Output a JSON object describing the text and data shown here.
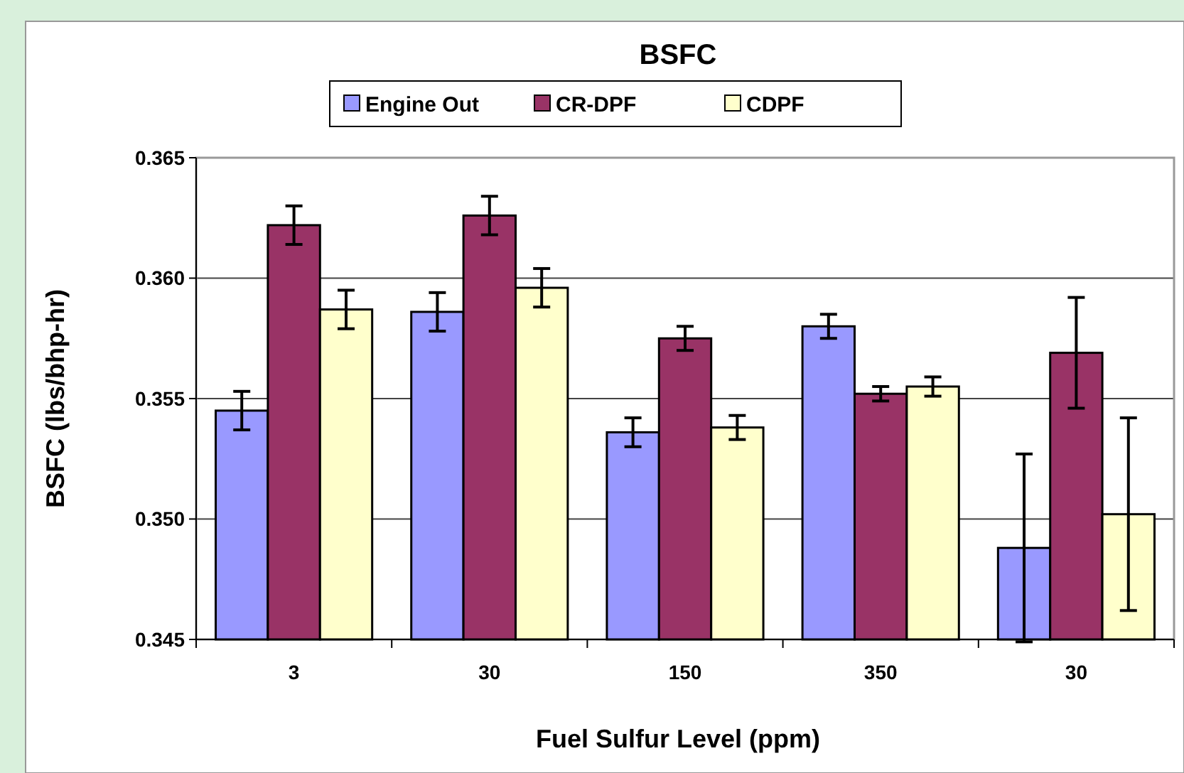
{
  "chart_data": {
    "type": "bar",
    "title": "BSFC",
    "xlabel": "Fuel Sulfur Level (ppm)",
    "ylabel": "BSFC (lbs/bhp-hr)",
    "categories": [
      "3",
      "30",
      "150",
      "350",
      "30"
    ],
    "series": [
      {
        "name": "Engine Out",
        "color": "#9999ff",
        "values": [
          0.3545,
          0.3586,
          0.3536,
          0.358,
          0.3488
        ],
        "errors": [
          0.0008,
          0.0008,
          0.0006,
          0.0005,
          0.0039
        ]
      },
      {
        "name": "CR-DPF",
        "color": "#993366",
        "values": [
          0.3622,
          0.3626,
          0.3575,
          0.3552,
          0.3569
        ],
        "errors": [
          0.0008,
          0.0008,
          0.0005,
          0.0003,
          0.0023
        ]
      },
      {
        "name": "CDPF",
        "color": "#ffffcc",
        "values": [
          0.3587,
          0.3596,
          0.3538,
          0.3555,
          0.3502
        ],
        "errors": [
          0.0008,
          0.0008,
          0.0005,
          0.0004,
          0.004
        ]
      }
    ],
    "ylim": [
      0.345,
      0.365
    ],
    "yticks": [
      {
        "value": 0.345,
        "label": "0.345"
      },
      {
        "value": 0.35,
        "label": "0.350"
      },
      {
        "value": 0.355,
        "label": "0.355"
      },
      {
        "value": 0.36,
        "label": "0.360"
      },
      {
        "value": 0.365,
        "label": "0.365"
      }
    ],
    "grid": "y",
    "legend": "top"
  }
}
